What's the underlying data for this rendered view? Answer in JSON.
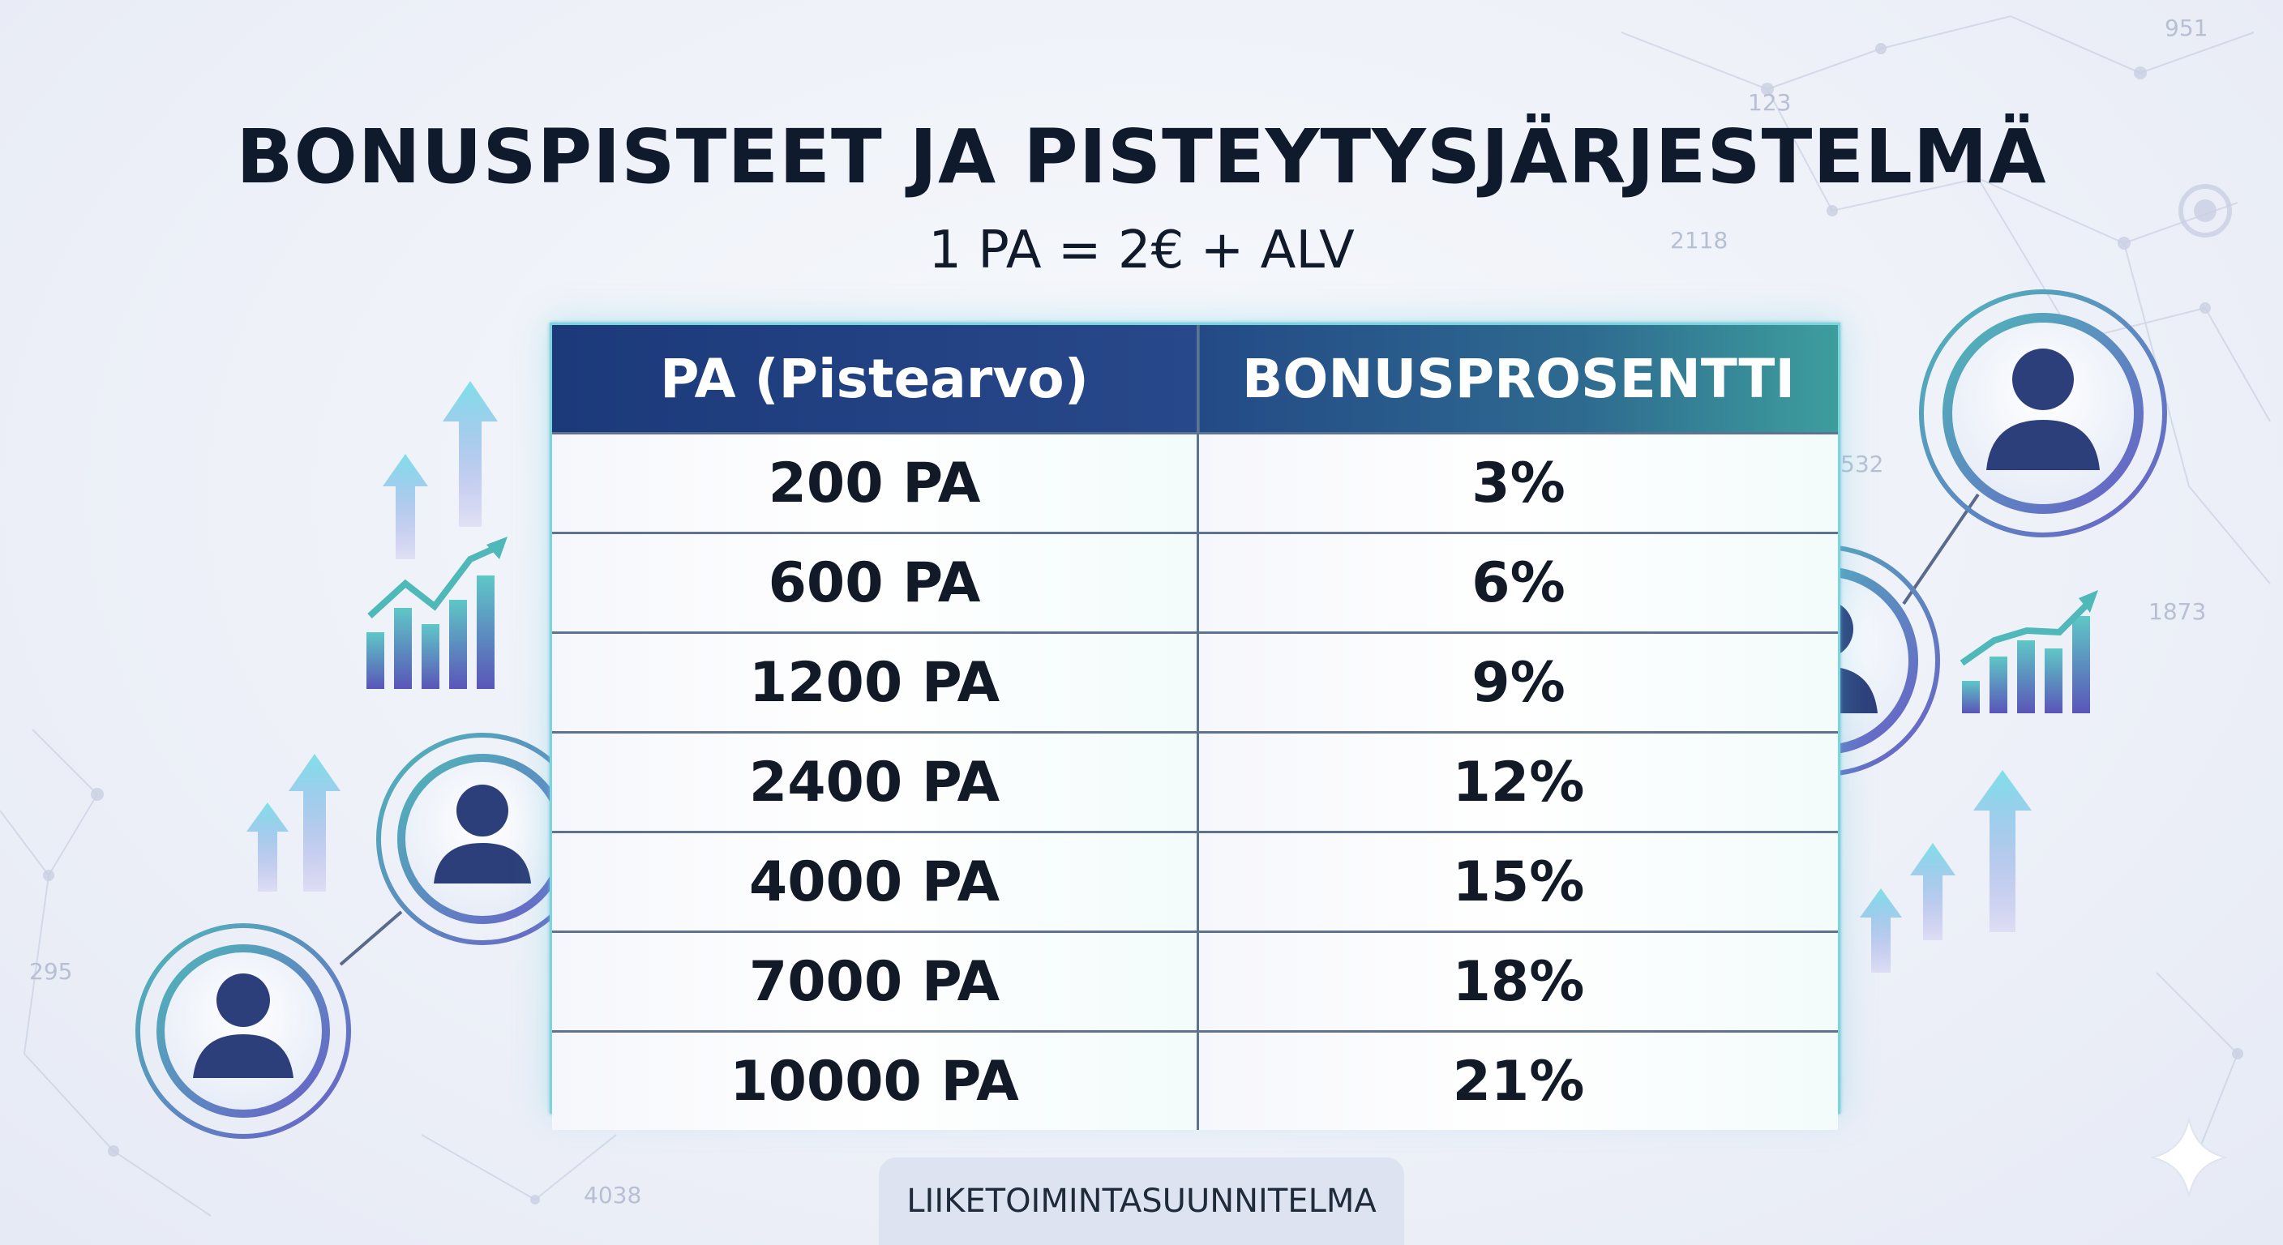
{
  "title": "BONUSPISTEET JA PISTEYTYSJÄRJESTELMÄ",
  "subtitle": "1 PA = 2€ + ALV",
  "table": {
    "headers": [
      "PA (Pistearvo)",
      "BONUSPROSENTTI"
    ],
    "rows": [
      [
        "200 PA",
        "3%"
      ],
      [
        "600 PA",
        "6%"
      ],
      [
        "1200 PA",
        "9%"
      ],
      [
        "2400 PA",
        "12%"
      ],
      [
        "4000 PA",
        "15%"
      ],
      [
        "7000 PA",
        "18%"
      ],
      [
        "10000 PA",
        "21%"
      ]
    ]
  },
  "footer": "LIIKETOIMINTASUUNNITELMA",
  "background_numbers": [
    "951",
    "123",
    "2118",
    "532",
    "1873",
    "295",
    "4038"
  ],
  "icons": [
    "person-icon",
    "up-arrow-icon",
    "growth-chart-icon",
    "sparkle-icon"
  ],
  "colors": {
    "header_dark": "#1f3f80",
    "header_teal": "#3a9a9a",
    "accent_teal": "#5fc7c7",
    "accent_purple": "#8a7fe0",
    "text_dark": "#0f1b2d"
  }
}
